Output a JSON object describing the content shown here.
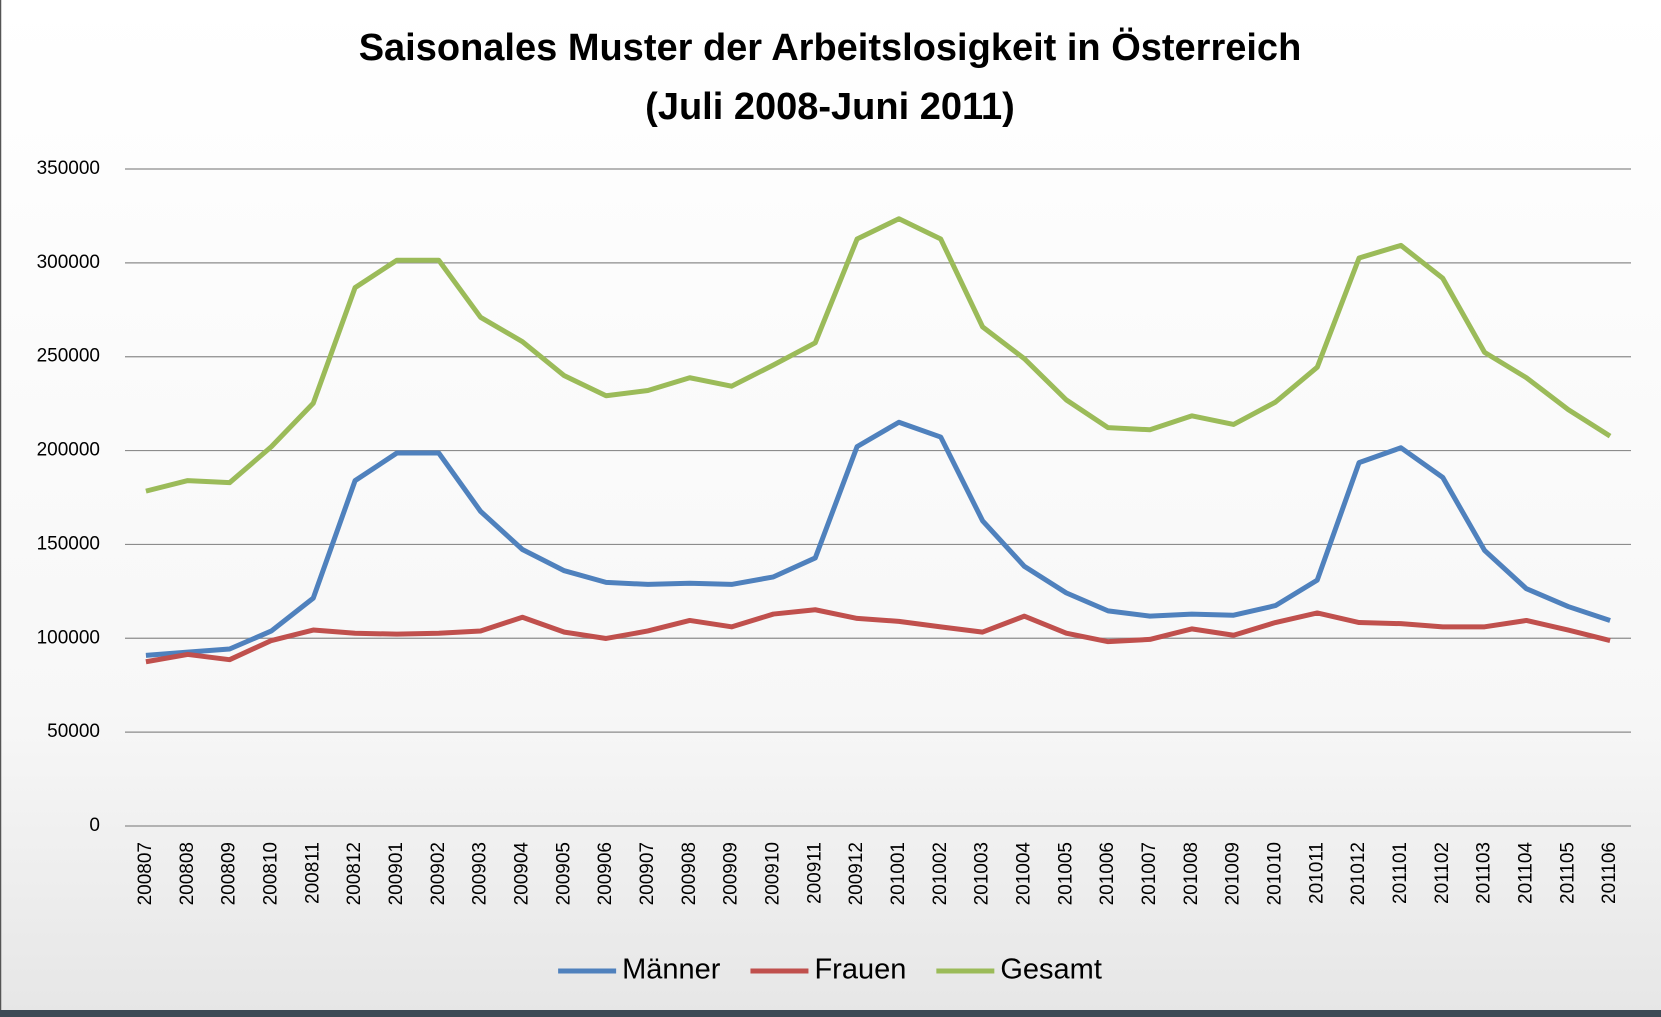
{
  "chart_data": {
    "type": "line",
    "title": "Saisonales Muster der Arbeitslosigkeit in Österreich",
    "subtitle": "(Juli 2008-Juni 2011)",
    "categories": [
      "200807",
      "200808",
      "200809",
      "200810",
      "200811",
      "200812",
      "200901",
      "200902",
      "200903",
      "200904",
      "200905",
      "200906",
      "200907",
      "200908",
      "200909",
      "200910",
      "200911",
      "200912",
      "201001",
      "201002",
      "201003",
      "201004",
      "201005",
      "201006",
      "201007",
      "201008",
      "201009",
      "201010",
      "201011",
      "201012",
      "201101",
      "201102",
      "201103",
      "201104",
      "201105",
      "201106"
    ],
    "series": [
      {
        "name": "Männer",
        "color": "#4f81bd",
        "values": [
          90900,
          92600,
          94300,
          103900,
          121400,
          184000,
          198700,
          198700,
          167600,
          147300,
          136000,
          129800,
          128700,
          129300,
          128700,
          132700,
          142800,
          202100,
          215100,
          207200,
          162600,
          138300,
          124200,
          114600,
          111800,
          112900,
          112300,
          117400,
          131000,
          193600,
          201500,
          185700,
          146800,
          126400,
          116900,
          109500
        ]
      },
      {
        "name": "Frauen",
        "color": "#c0504d",
        "values": [
          87500,
          91400,
          88600,
          98800,
          104400,
          102700,
          102200,
          102700,
          103900,
          111200,
          103300,
          99900,
          103900,
          109500,
          106100,
          112900,
          115200,
          110600,
          109000,
          106100,
          103300,
          111800,
          102700,
          98200,
          99400,
          105000,
          101600,
          108400,
          113500,
          108400,
          107800,
          106100,
          106100,
          109500,
          104400,
          98800
        ]
      },
      {
        "name": "Gesamt",
        "color": "#9bbb59",
        "values": [
          178400,
          184000,
          182900,
          202100,
          225200,
          286800,
          301400,
          301400,
          271000,
          258000,
          239900,
          229200,
          232000,
          238800,
          234300,
          245600,
          257400,
          312700,
          323500,
          312700,
          265900,
          248900,
          227000,
          212200,
          211100,
          218500,
          213900,
          225800,
          244400,
          302600,
          309300,
          291800,
          252300,
          238800,
          221800,
          207700
        ]
      }
    ],
    "ylim": [
      0,
      350000
    ],
    "yticks": [
      0,
      50000,
      100000,
      150000,
      200000,
      250000,
      300000,
      350000
    ],
    "grid": true,
    "legend": "bottom"
  }
}
